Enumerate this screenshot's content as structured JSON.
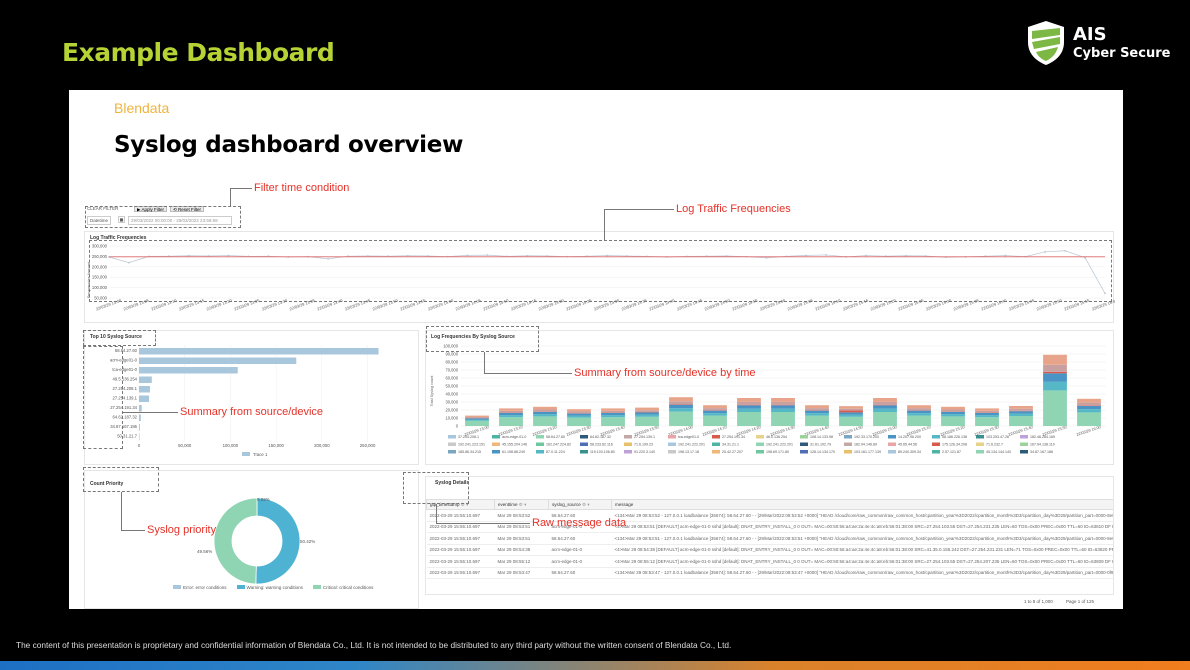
{
  "slide": {
    "title": "Example Dashboard",
    "logo": {
      "line1": "AIS",
      "line2": "Cyber Secure"
    },
    "footer": "The content of this presentation is proprietary and confidential information of Blendata Co., Ltd.  It is not intended to be distributed to any third party without the written consent of Blendata Co., Ltd."
  },
  "panel": {
    "brand": "Blendata",
    "heading": "Syslog dashboard overview"
  },
  "annotations": {
    "filter": "Filter time condition",
    "traffic": "Log Traffic Frequencies",
    "source_time": "Summary from source/device by time",
    "source": "Summary from source/device",
    "priority": "Syslog priority",
    "raw": "Raw message data"
  },
  "filter": {
    "clear_label": "CLEAR FILTER",
    "apply_label": "Apply Filter",
    "reset_label": "Reset Filter",
    "field_label": "Datetime",
    "range_value": "29/03/2022 00:00:00 - 29/03/2022 23:59:59"
  },
  "traffic_chart": {
    "title": "Log Traffic Frequencies",
    "ylabel": "Frequencies Amount",
    "yticks": [
      "300,000",
      "250,000",
      "200,000",
      "150,000",
      "100,000",
      "50,000"
    ],
    "xticks": [
      "22/03/29 13:00",
      "22/03/29 13:05",
      "22/03/29 13:10",
      "22/03/29 13:15",
      "22/03/29 13:20",
      "22/03/29 13:25",
      "22/03/29 13:30",
      "22/03/29 13:35",
      "22/03/29 13:40",
      "22/03/29 13:45",
      "22/03/29 13:50",
      "22/03/29 13:55",
      "22/03/29 14:00",
      "22/03/29 14:05",
      "22/03/29 14:10",
      "22/03/29 14:15",
      "22/03/29 14:20",
      "22/03/29 14:25",
      "22/03/29 14:30",
      "22/03/29 14:35",
      "22/03/29 14:40",
      "22/03/29 14:45",
      "22/03/29 14:50",
      "22/03/29 14:55",
      "22/03/29 15:00",
      "22/03/29 15:05",
      "22/03/29 15:10",
      "22/03/29 15:15",
      "22/03/29 15:20",
      "22/03/29 15:25",
      "22/03/29 15:30",
      "22/03/29 15:35",
      "22/03/29 15:40",
      "22/03/29 15:45",
      "22/03/29 15:50",
      "22/03/29 15:55",
      "22/03/29 16:00"
    ]
  },
  "top10": {
    "title": "Top 10 Syslog Source",
    "xticks": [
      "0",
      "50,000",
      "100,000",
      "150,000",
      "200,000",
      "250,000"
    ],
    "legend": "Trace 1"
  },
  "freq_by_source": {
    "title": "Log Frequencies By Syslog Source",
    "ylabel": "Total Syslog count",
    "yticks": [
      "100,000",
      "90,000",
      "80,000",
      "70,000",
      "60,000",
      "50,000",
      "40,000",
      "30,000",
      "20,000",
      "10,000",
      "0"
    ],
    "xticks": [
      "22/03/29 13:00",
      "22/03/29 13:10",
      "22/03/29 13:20",
      "22/03/29 13:30",
      "22/03/29 13:40",
      "22/03/29 13:50",
      "22/03/29 14:00",
      "22/03/29 14:10",
      "22/03/29 14:20",
      "22/03/29 14:30",
      "22/03/29 14:40",
      "22/03/29 14:50",
      "22/03/29 15:00",
      "22/03/29 15:10",
      "22/03/29 15:20",
      "22/03/29 15:30",
      "22/03/29 15:40",
      "22/03/29 15:50",
      "22/03/29 16:00"
    ],
    "legend": [
      "37.254.208.1",
      "acm-edge-01-0",
      "58.64.27.60",
      "64.62.187.32",
      "27.254.139.1",
      "tca-edge01-0",
      "27.254.191.34",
      "46.0.136.254",
      "108.14.133.98",
      "192.33.170.200",
      "14.207.96.200",
      "58.186.226.138",
      "103.253.47.26",
      "182.46.284.165",
      "192.241.223.151",
      "45.155.204.146",
      "162.247.224.82",
      "58.233.62.116",
      "71.6.199.23",
      "192.241.222.201",
      "34.31.21.1",
      "192.241.222.201",
      "31.61.102.79",
      "182.94.146.89",
      "45.65.44.56",
      "175.126.34.208",
      "71.6.232.7",
      "167.94.138.110",
      "185.86.34.215",
      "61.198.86.249",
      "87.0.11.224",
      "119.103.106.80",
      "91.220.3.140",
      "198.13.17.18",
      "20.42.27.207",
      "198.69.171.80",
      "128.14.134.170",
      "103.161.177.139",
      "89.240.309.34",
      "2.57.121.87",
      "45.134.144.140",
      "34.87.167.186"
    ]
  },
  "priority": {
    "title": "Count Priority",
    "pct_top": "0.02%",
    "pct_left": "49.56%",
    "pct_right": "50.42%",
    "legend": [
      "Error: error conditions",
      "Warning: warning conditions",
      "Critical: critical conditions"
    ]
  },
  "details": {
    "title": "Syslog Details",
    "columns": [
      "gtp_timestamp",
      "eventtime",
      "syslog_source",
      "message"
    ],
    "rows": [
      [
        "2022-03-29 15:55:10.697",
        "Mar 29 08:53:52",
        "58.64.27.60",
        "<134>Mar 29 08:53:52 - 127.0.0.1 loadbalance [35674]: 58.64.27.60 - - [29/Mar/2022:08:53:52 +0000] \"HEAD /cloud/core/raw_common/raw_common_host/cpartition_year%3D2022/cpartition_month%3D3/cpartition_day%3D29/partition_part=0000-8e9f0c7f \"HEAD 0.0.1.5.4 --- 10.4.4.1.0.0.0.0\""
      ],
      [
        "2022-03-29 15:55:10.697",
        "Mar 29 08:53:51",
        "acm-edge-01-0",
        "<4>Mar 29 08:53:51 [DEFAULT] acm-edge-01-0 sshd [default]: DNAT_ENTRY_INSTALL_0 0 OUT= MAC=00:50:56:a4:ae:2a:4e:4c:a8:eb:56:01:38:00 SRC=27.254.103.55 DST=27.254.231.235 LEN=60 TOS=0x00 PREC=0x00 TTL=60 ID=63810 DF PROTO=TCP SPT=45758 DPT=443 LEN=0"
      ],
      [
        "2022-03-29 15:55:10.697",
        "Mar 29 08:53:51",
        "58.64.27.60",
        "<134>Mar 29 08:53:51 - 127.0.0.1 loadbalance [35674]: 58.64.27.60 - - [29/Mar/2022:08:53:51 +0000] \"HEAD /cloud/core/raw_common/raw_common_host/cpartition_year%3D2022/cpartition_month%3D3/cpartition_day%3D29/partition_part=0000-8e9f0c7f \"HEAD 0.0.0.5.0 --- 12.4.4.1.0.0.0.0\""
      ],
      [
        "2022-03-29 15:55:10.697",
        "Mar 29 08:54:38",
        "acm-edge-01-0",
        "<4>Mar 29 08:54:38 [DEFAULT] acm-edge-01-0 sshd [default]: DNAT_ENTRY_INSTALL_0 0 OUT= MAC=00:50:56:a4:ae:2a:4e:4c:a8:eb:56:01:38:00 SRC=41.35.0.155.242 DST=27.254.231.231 LEN=71 TOS=0x00 PREC=0x00 TTL=60 ID=63820 PROTO=TCP SPT=42552 DPT=9320 LEN=0"
      ],
      [
        "2022-03-29 15:55:10.697",
        "Mar 29 08:55:12",
        "acm-edge-01-0",
        "<4>Mar 29 08:55:12 [DEFAULT] acm-edge-01-0 sshd [default]: DNAT_ENTRY_INSTALL_0 0 OUT= MAC=00:50:56:a4:ae:2a:4e:4c:a8:eb:56:01:38:00 SRC=27.254.103.55 DST=27.254.207.235 LEN=60 TOS=0x00 PREC=0x00 TTL=60 ID=63809 DF PROTO=TCP SPT=42482 DPT=443 LEN=0"
      ],
      [
        "2022-03-29 15:55:10.697",
        "Mar 29 08:53:47",
        "58.64.27.60",
        "<134>Mar 29 08:53:47 - 127.0.0.1 loadbalance [35674]: 58.64.27.60 - - [29/Mar/2022:08:53:47 +0000] \"HEAD /cloud/core/raw_common/raw_common_host/cpartition_year%3D2022/cpartition_month%3D3/cpartition_day%3D29/partition_part=0000-0f9ba4f0"
      ]
    ],
    "pagination": "1 to 8 of 1,000",
    "page": "Page 1 of 125"
  },
  "chart_data": [
    {
      "type": "line",
      "title": "Log Traffic Frequencies",
      "ylabel": "Frequencies Amount",
      "ylim": [
        50000,
        300000
      ],
      "series": [
        {
          "name": "",
          "values": [
            247000,
            220000,
            250000,
            251000,
            253000,
            252000,
            254000,
            250000,
            251000,
            247000,
            249000,
            238000,
            251000,
            252000,
            251000,
            253000,
            252000,
            249000,
            255000,
            256000,
            250000,
            253000,
            252000,
            249000,
            251000,
            254000,
            252000,
            250000,
            247000,
            250000,
            251000,
            252000,
            249000,
            243000,
            250000,
            255000,
            257000,
            248000,
            254000,
            251000,
            253000,
            252000,
            246000,
            248000,
            251000,
            254000,
            249000,
            272000,
            277000,
            244000,
            72000
          ]
        },
        {
          "name": "",
          "values": [
            248000,
            248000,
            248000,
            248000,
            248000,
            248000,
            248000,
            248000,
            248000,
            248000,
            248000,
            248000,
            248000,
            248000,
            248000,
            248000,
            248000,
            248000,
            248000,
            248000,
            248000,
            248000,
            248000,
            248000,
            248000,
            248000,
            248000,
            248000,
            248000,
            248000,
            248000,
            248000,
            248000,
            248000,
            248000,
            248000,
            248000,
            248000,
            248000,
            248000,
            248000,
            248000,
            248000,
            248000,
            248000,
            248000,
            248000,
            248000,
            248000,
            248000,
            248000
          ]
        }
      ]
    },
    {
      "type": "bar",
      "title": "Top 10 Syslog Source",
      "categories": [
        "58.64.27.60",
        "acm-edge01-0",
        "tca-edge01-0",
        "49.5.136.254",
        "27.254.208.1",
        "27.254.139.1",
        "27.254.191.34",
        "64.62.187.32",
        "34.87.167.186",
        "50.31.21.7"
      ],
      "values": [
        262000,
        172000,
        108000,
        14000,
        12000,
        11000,
        3000,
        2000,
        1000,
        500
      ],
      "xlim": [
        0,
        280000
      ]
    },
    {
      "type": "bar",
      "title": "Log Frequencies By Syslog Source",
      "ylim": [
        0,
        100000
      ],
      "categories": [
        "13:00",
        "13:10",
        "13:20",
        "13:30",
        "13:40",
        "13:50",
        "14:00",
        "14:10",
        "14:20",
        "14:30",
        "14:40",
        "14:50",
        "15:00",
        "15:10",
        "15:20",
        "15:30",
        "15:40",
        "15:50",
        "16:00"
      ],
      "values": [
        13000,
        22000,
        24000,
        21000,
        22000,
        23000,
        36000,
        26000,
        35000,
        35000,
        26000,
        23000,
        35000,
        26000,
        24000,
        22000,
        25000,
        89000,
        34000
      ]
    },
    {
      "type": "pie",
      "title": "Count Priority",
      "categories": [
        "Error: error conditions",
        "Warning: warning conditions",
        "Critical: critical conditions"
      ],
      "values": [
        0.02,
        50.42,
        49.56
      ]
    }
  ]
}
